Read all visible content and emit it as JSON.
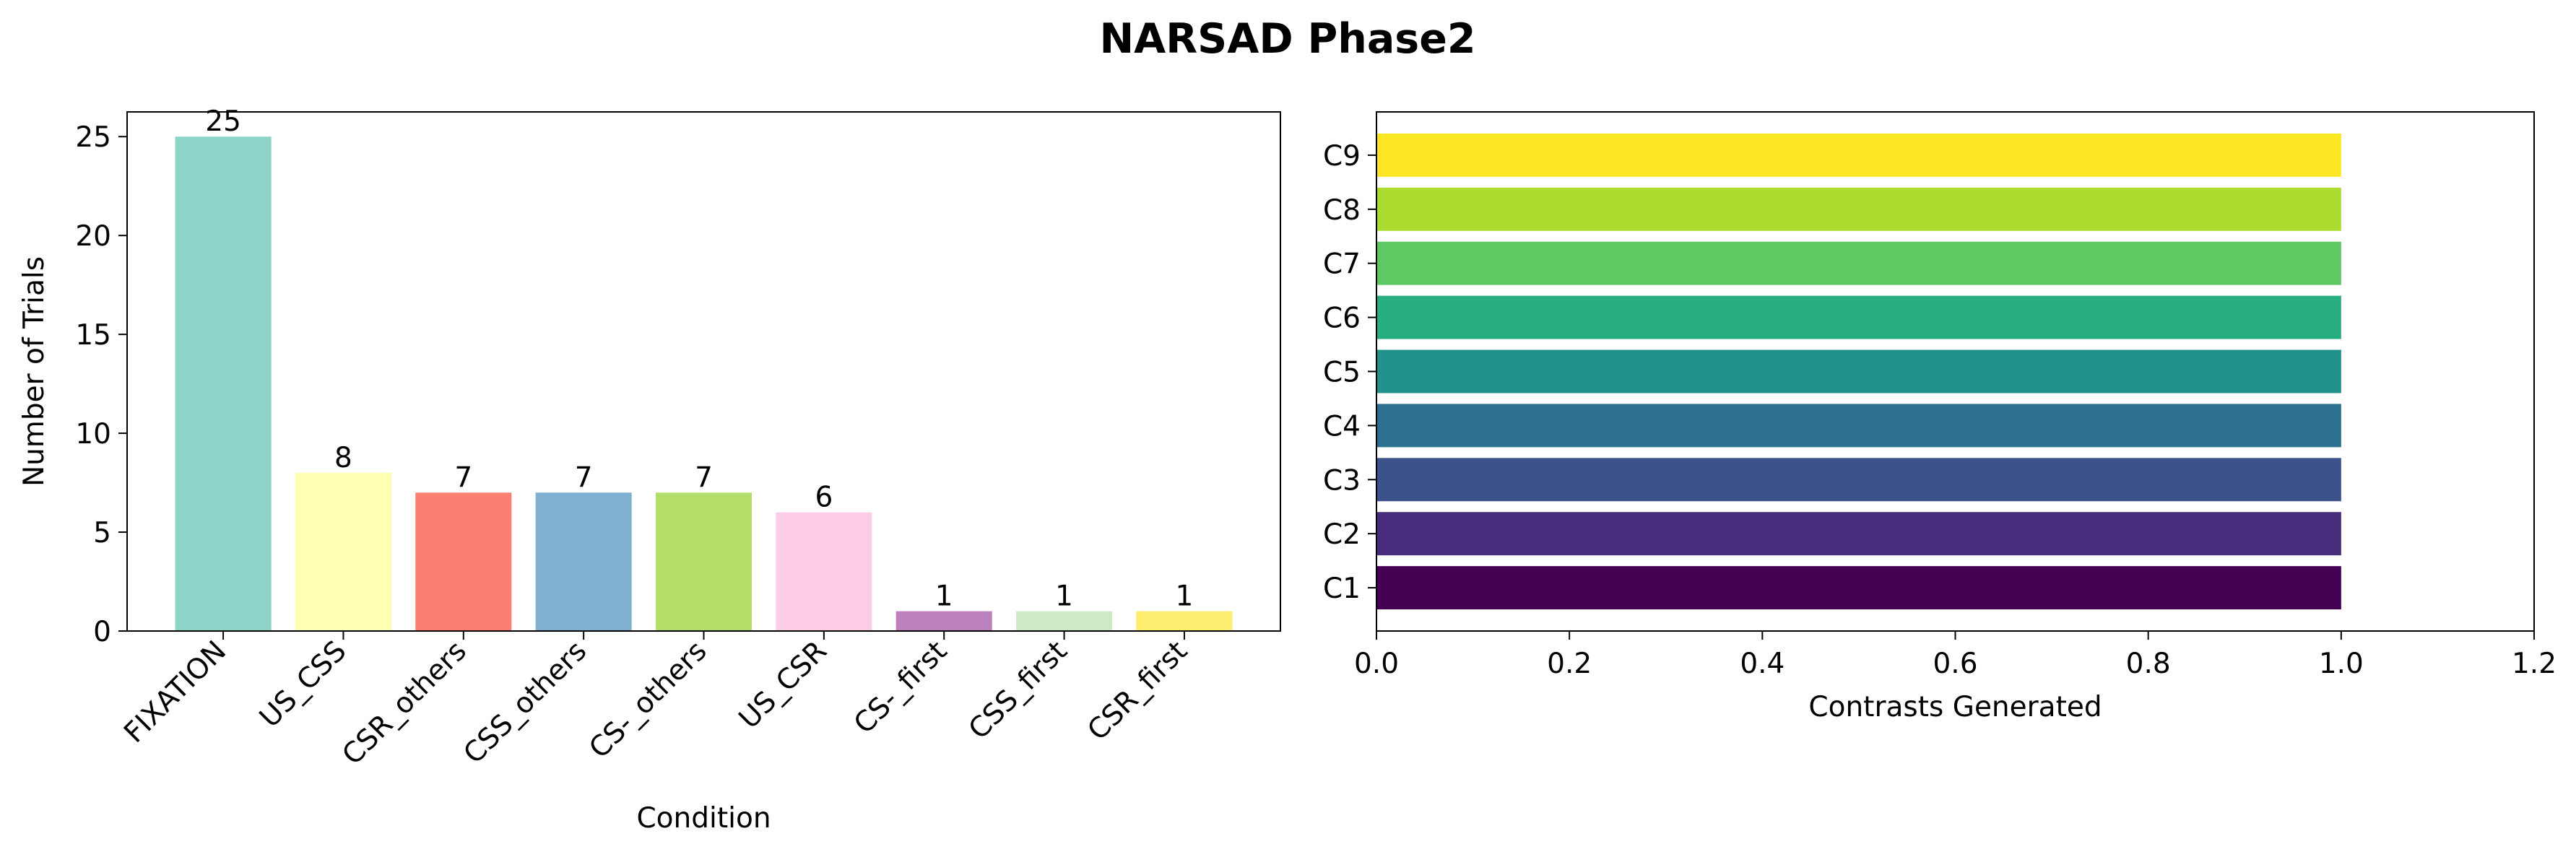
{
  "figure": {
    "title": "NARSAD Phase2"
  },
  "chart_data": [
    {
      "type": "bar",
      "orientation": "vertical",
      "title": "",
      "xlabel": "Condition",
      "ylabel": "Number of Trials",
      "categories": [
        "FIXATION",
        "US_CSS",
        "CSR_others",
        "CSS_others",
        "CS-_others",
        "US_CSR",
        "CS-_first",
        "CSS_first",
        "CSR_first"
      ],
      "values": [
        25,
        8,
        7,
        7,
        7,
        6,
        1,
        1,
        1
      ],
      "colors": [
        "#8dd3c7",
        "#ffffb3",
        "#fb8072",
        "#80b1d3",
        "#b3de69",
        "#fccde5",
        "#bc80bd",
        "#ccebc5",
        "#ffed6f"
      ],
      "ylim": [
        0,
        26.25
      ],
      "yticks": [
        0,
        5,
        10,
        15,
        20,
        25
      ],
      "data_labels": true,
      "grid": false,
      "legend": "none"
    },
    {
      "type": "bar",
      "orientation": "horizontal",
      "title": "",
      "xlabel": "Contrasts Generated",
      "ylabel": "",
      "categories": [
        "C1",
        "C2",
        "C3",
        "C4",
        "C5",
        "C6",
        "C7",
        "C8",
        "C9"
      ],
      "values": [
        1,
        1,
        1,
        1,
        1,
        1,
        1,
        1,
        1
      ],
      "colors": [
        "#440154",
        "#472d7b",
        "#3b528b",
        "#2c728e",
        "#21918c",
        "#28ae80",
        "#5ec962",
        "#addc30",
        "#fde725"
      ],
      "xlim": [
        0,
        1.2
      ],
      "xticks": [
        "0.0",
        "0.2",
        "0.4",
        "0.6",
        "0.8",
        "1.0",
        "1.2"
      ],
      "grid": false,
      "legend": "none"
    }
  ]
}
